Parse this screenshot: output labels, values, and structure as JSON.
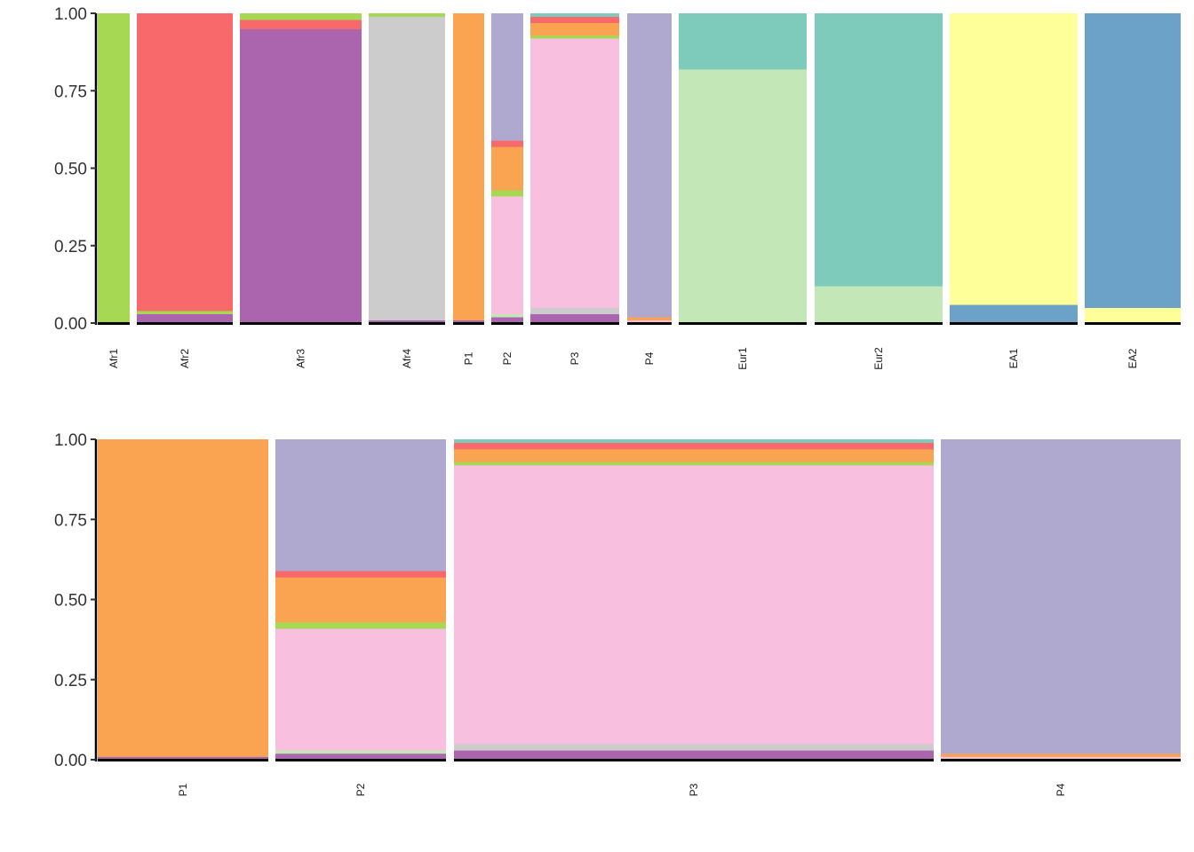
{
  "colors": {
    "K1": "#a6d854",
    "K2": "#f8696b",
    "K3": "#ab65af",
    "K4": "#cccccc",
    "K5": "#faa350",
    "K6": "#b0a9cf",
    "K7": "#f8bfde",
    "K8": "#c4e7b7",
    "K9": "#7fcbbb",
    "K10": "#ffff99",
    "K11": "#6ca1c8"
  },
  "chart_data": [
    {
      "type": "bar",
      "stacked": true,
      "ylim": [
        0,
        1
      ],
      "yticks": [
        "0.00",
        "0.25",
        "0.50",
        "0.75",
        "1.00"
      ],
      "grid": false,
      "groups": [
        {
          "label": "Afr1",
          "components": {
            "K1": 1.0
          }
        },
        {
          "label": "Afr2",
          "components": {
            "K3": 0.03,
            "K1": 0.01,
            "K2": 0.96
          }
        },
        {
          "label": "Afr3",
          "components": {
            "K3": 0.95,
            "K2": 0.03,
            "K1": 0.02
          }
        },
        {
          "label": "Afr4",
          "components": {
            "K3": 0.01,
            "K4": 0.98,
            "K1": 0.01
          }
        },
        {
          "label": "P1",
          "components": {
            "K3": 0.01,
            "K5": 0.99
          }
        },
        {
          "label": "P2",
          "components": {
            "K3": 0.02,
            "K8": 0.01,
            "K7": 0.38,
            "K1": 0.02,
            "K5": 0.14,
            "K2": 0.02,
            "K6": 0.41
          }
        },
        {
          "label": "P3",
          "components": {
            "K3": 0.03,
            "K4": 0.02,
            "K7": 0.87,
            "K1": 0.01,
            "K5": 0.04,
            "K2": 0.02,
            "K9": 0.01
          }
        },
        {
          "label": "P4",
          "components": {
            "K7": 0.01,
            "K5": 0.01,
            "K6": 0.98
          }
        },
        {
          "label": "Eur1",
          "components": {
            "K8": 0.82,
            "K9": 0.18
          }
        },
        {
          "label": "Eur2",
          "components": {
            "K8": 0.12,
            "K9": 0.88
          }
        },
        {
          "label": "EA1",
          "components": {
            "K11": 0.06,
            "K10": 0.94
          }
        },
        {
          "label": "EA2",
          "components": {
            "K10": 0.05,
            "K11": 0.95
          }
        }
      ]
    },
    {
      "type": "bar",
      "stacked": true,
      "ylim": [
        0,
        1
      ],
      "yticks": [
        "0.00",
        "0.25",
        "0.50",
        "0.75",
        "1.00"
      ],
      "grid": false,
      "groups": [
        {
          "label": "P1",
          "components": {
            "K3": 0.01,
            "K5": 0.99
          }
        },
        {
          "label": "P2",
          "components": {
            "K3": 0.02,
            "K8": 0.01,
            "K7": 0.38,
            "K1": 0.02,
            "K5": 0.14,
            "K2": 0.02,
            "K6": 0.41
          }
        },
        {
          "label": "P3",
          "components": {
            "K3": 0.03,
            "K4": 0.02,
            "K7": 0.87,
            "K1": 0.01,
            "K5": 0.04,
            "K2": 0.02,
            "K9": 0.01
          }
        },
        {
          "label": "P4",
          "components": {
            "K7": 0.01,
            "K5": 0.01,
            "K6": 0.98
          }
        }
      ]
    }
  ]
}
